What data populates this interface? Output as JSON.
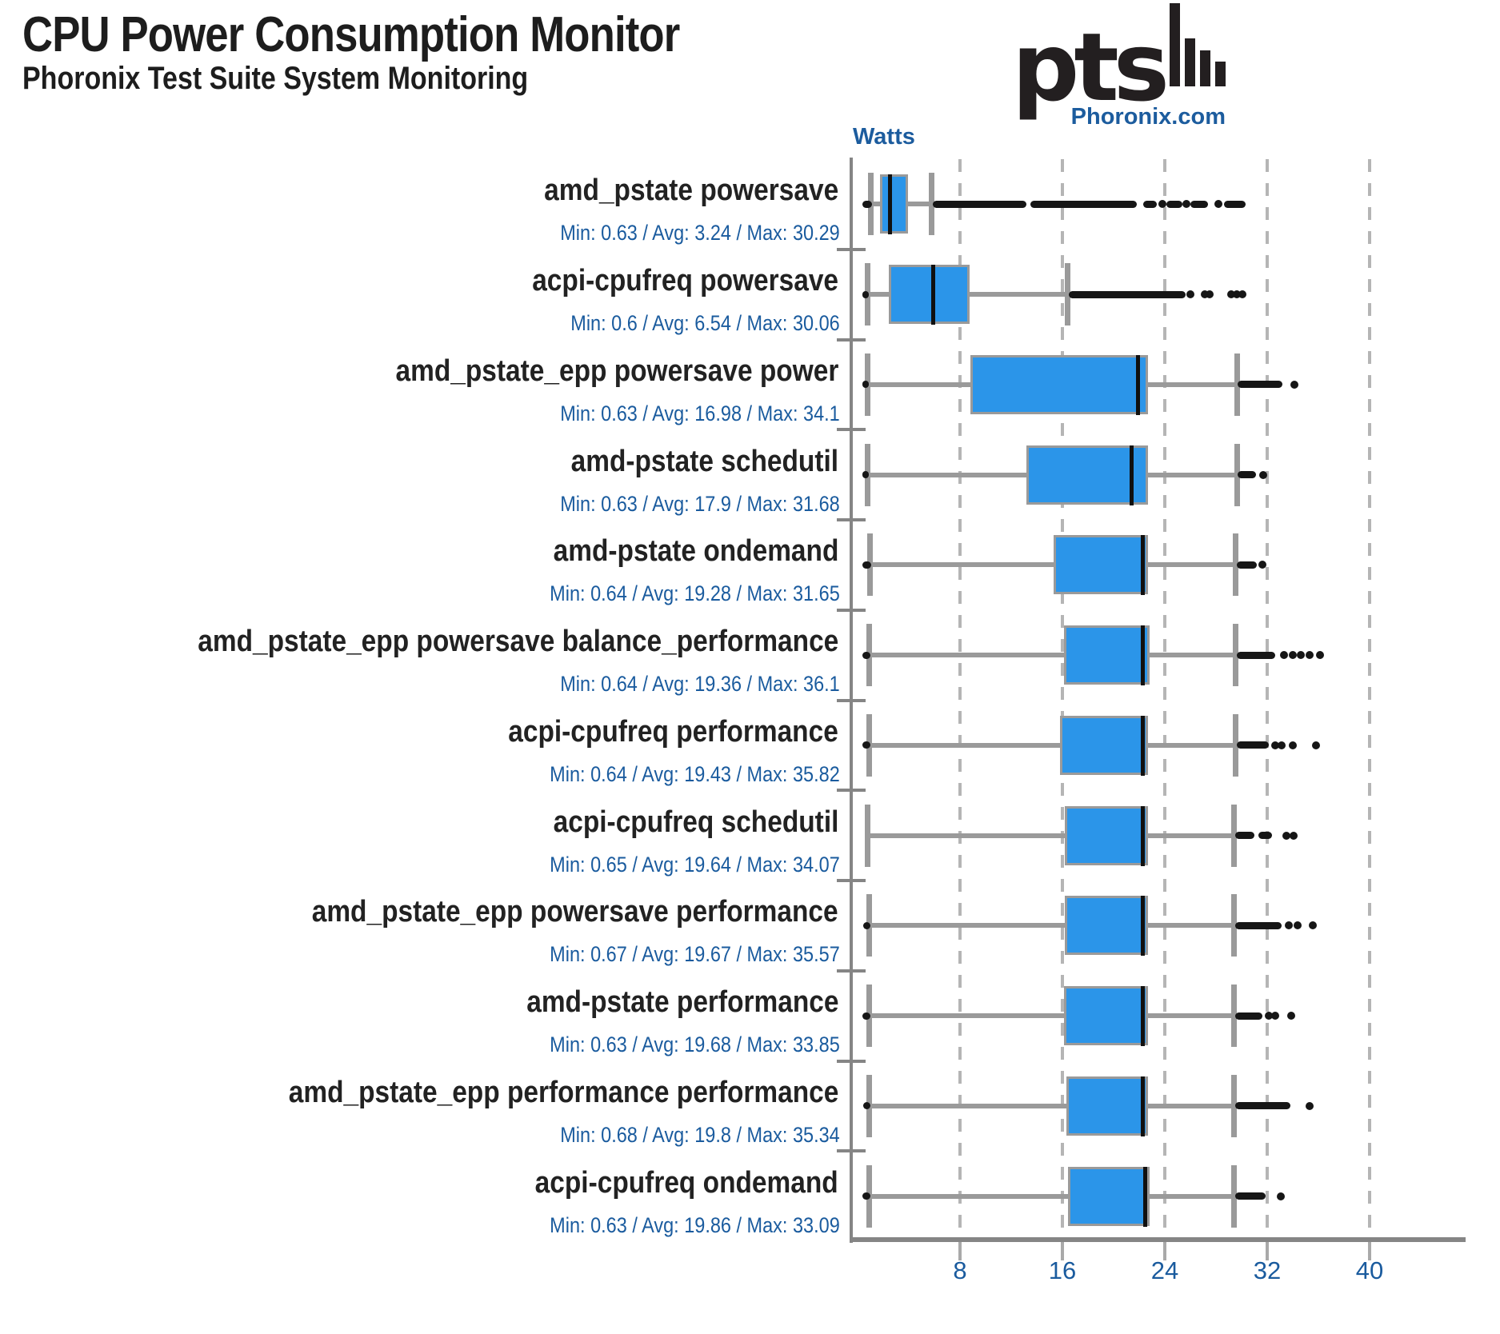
{
  "header": {
    "title": "CPU Power Consumption Monitor",
    "subtitle": "Phoronix Test Suite System Monitoring"
  },
  "branding": {
    "logo_text": "pts",
    "site_label": "Phoronix.com"
  },
  "palette": {
    "box_fill": "#2b95e9",
    "box_border": "#9a9a9a",
    "whisker": "#9a9a9a",
    "median": "#101010",
    "outlier": "#161616",
    "axis": "#858585",
    "tick": "#a9a9a9",
    "grid": "#b5b5b5",
    "blue_text": "#1a5b9e",
    "black_text": "#222222"
  },
  "chart_data": {
    "type": "box",
    "orientation": "horizontal",
    "title": "CPU Power Consumption Monitor",
    "unit_label": "Watts",
    "xlim": [
      0,
      47.5
    ],
    "x_ticks": [
      8,
      16,
      24,
      32,
      40
    ],
    "grid": "dashed-vertical",
    "rows": [
      {
        "label": "amd_pstate powersave",
        "stats": "Min: 0.63 / Avg: 3.24 / Max: 30.29",
        "min": 0.63,
        "avg": 3.24,
        "max": 30.29,
        "whisker_low": 1.0,
        "q1": 1.95,
        "median": 2.5,
        "q3": 3.75,
        "whisker_high": 5.75,
        "outlier_strips": [
          [
            5.9,
            13.2
          ],
          [
            13.5,
            21.8
          ],
          [
            22.3,
            23.4
          ],
          [
            24.1,
            25.4
          ],
          [
            26.0,
            27.4
          ],
          [
            28.6,
            30.29
          ]
        ],
        "outlier_dots": [
          23.8,
          25.7,
          28.2
        ]
      },
      {
        "label": "acpi-cpufreq powersave",
        "stats": "Min: 0.6 / Avg: 6.54 / Max: 30.06",
        "min": 0.6,
        "avg": 6.54,
        "max": 30.06,
        "whisker_low": 0.73,
        "q1": 2.6,
        "median": 5.9,
        "q3": 8.55,
        "whisker_high": 16.35,
        "outlier_strips": [
          [
            16.5,
            25.6
          ]
        ],
        "outlier_dots": [
          26.0,
          27.1,
          27.5,
          29.2,
          29.6,
          30.06
        ]
      },
      {
        "label": "amd_pstate_epp powersave power",
        "stats": "Min: 0.63 / Avg: 16.98 / Max: 34.1",
        "min": 0.63,
        "avg": 16.98,
        "max": 34.1,
        "whisker_low": 0.78,
        "q1": 9.0,
        "median": 21.9,
        "q3": 22.5,
        "whisker_high": 29.6,
        "outlier_strips": [
          [
            29.7,
            33.2
          ]
        ],
        "outlier_dots": [
          34.1
        ]
      },
      {
        "label": "amd-pstate schedutil",
        "stats": "Min: 0.63 / Avg: 17.9 / Max: 31.68",
        "min": 0.63,
        "avg": 17.9,
        "max": 31.68,
        "whisker_low": 0.78,
        "q1": 13.4,
        "median": 21.4,
        "q3": 22.5,
        "whisker_high": 29.6,
        "outlier_strips": [
          [
            29.7,
            31.1
          ]
        ],
        "outlier_dots": [
          31.68
        ]
      },
      {
        "label": "amd-pstate ondemand",
        "stats": "Min: 0.64 / Avg: 19.28 / Max: 31.65",
        "min": 0.64,
        "avg": 19.28,
        "max": 31.65,
        "whisker_low": 0.91,
        "q1": 15.5,
        "median": 22.3,
        "q3": 22.5,
        "whisker_high": 29.5,
        "outlier_strips": [
          [
            29.6,
            31.2
          ]
        ],
        "outlier_dots": [
          31.65
        ]
      },
      {
        "label": "amd_pstate_epp powersave balance_performance",
        "stats": "Min: 0.64 / Avg: 19.36 / Max: 36.1",
        "min": 0.64,
        "avg": 19.36,
        "max": 36.1,
        "whisker_low": 0.9,
        "q1": 16.3,
        "median": 22.3,
        "q3": 22.6,
        "whisker_high": 29.5,
        "outlier_strips": [
          [
            29.6,
            32.6
          ]
        ],
        "outlier_dots": [
          33.3,
          34.0,
          34.6,
          35.3,
          36.1
        ]
      },
      {
        "label": "acpi-cpufreq performance",
        "stats": "Min: 0.64 / Avg: 19.43 / Max: 35.82",
        "min": 0.64,
        "avg": 19.43,
        "max": 35.82,
        "whisker_low": 0.9,
        "q1": 16.0,
        "median": 22.3,
        "q3": 22.5,
        "whisker_high": 29.5,
        "outlier_strips": [
          [
            29.6,
            32.1
          ]
        ],
        "outlier_dots": [
          32.6,
          33.1,
          34.0,
          35.82
        ]
      },
      {
        "label": "acpi-cpufreq schedutil",
        "stats": "Min: 0.65 / Avg: 19.64 / Max: 34.07",
        "min": 0.65,
        "avg": 19.64,
        "max": 34.07,
        "whisker_low": 0.73,
        "q1": 16.35,
        "median": 22.3,
        "q3": 22.5,
        "whisker_high": 29.4,
        "outlier_strips": [
          [
            29.5,
            31.0
          ],
          [
            31.3,
            32.4
          ]
        ],
        "outlier_dots": [
          33.5,
          34.07
        ]
      },
      {
        "label": "amd_pstate_epp powersave performance",
        "stats": "Min: 0.67 / Avg: 19.67 / Max: 35.57",
        "min": 0.67,
        "avg": 19.67,
        "max": 35.57,
        "whisker_low": 0.9,
        "q1": 16.4,
        "median": 22.3,
        "q3": 22.5,
        "whisker_high": 29.4,
        "outlier_strips": [
          [
            29.5,
            33.1
          ]
        ],
        "outlier_dots": [
          33.7,
          34.4,
          35.57
        ]
      },
      {
        "label": "amd-pstate performance",
        "stats": "Min: 0.63 / Avg: 19.68 / Max: 33.85",
        "min": 0.63,
        "avg": 19.68,
        "max": 33.85,
        "whisker_low": 0.9,
        "q1": 16.3,
        "median": 22.3,
        "q3": 22.5,
        "whisker_high": 29.4,
        "outlier_strips": [
          [
            29.5,
            31.6
          ]
        ],
        "outlier_dots": [
          32.1,
          32.6,
          33.85
        ]
      },
      {
        "label": "amd_pstate_epp performance performance",
        "stats": "Min: 0.68 / Avg: 19.8 / Max: 35.34",
        "min": 0.68,
        "avg": 19.8,
        "max": 35.34,
        "whisker_low": 0.88,
        "q1": 16.5,
        "median": 22.3,
        "q3": 22.5,
        "whisker_high": 29.4,
        "outlier_strips": [
          [
            29.5,
            33.8
          ]
        ],
        "outlier_dots": [
          35.34
        ]
      },
      {
        "label": "acpi-cpufreq ondemand",
        "stats": "Min: 0.63 / Avg: 19.86 / Max: 33.09",
        "min": 0.63,
        "avg": 19.86,
        "max": 33.09,
        "whisker_low": 0.88,
        "q1": 16.6,
        "median": 22.45,
        "q3": 22.6,
        "whisker_high": 29.4,
        "outlier_strips": [
          [
            29.5,
            31.9
          ]
        ],
        "outlier_dots": [
          33.09
        ]
      }
    ]
  }
}
